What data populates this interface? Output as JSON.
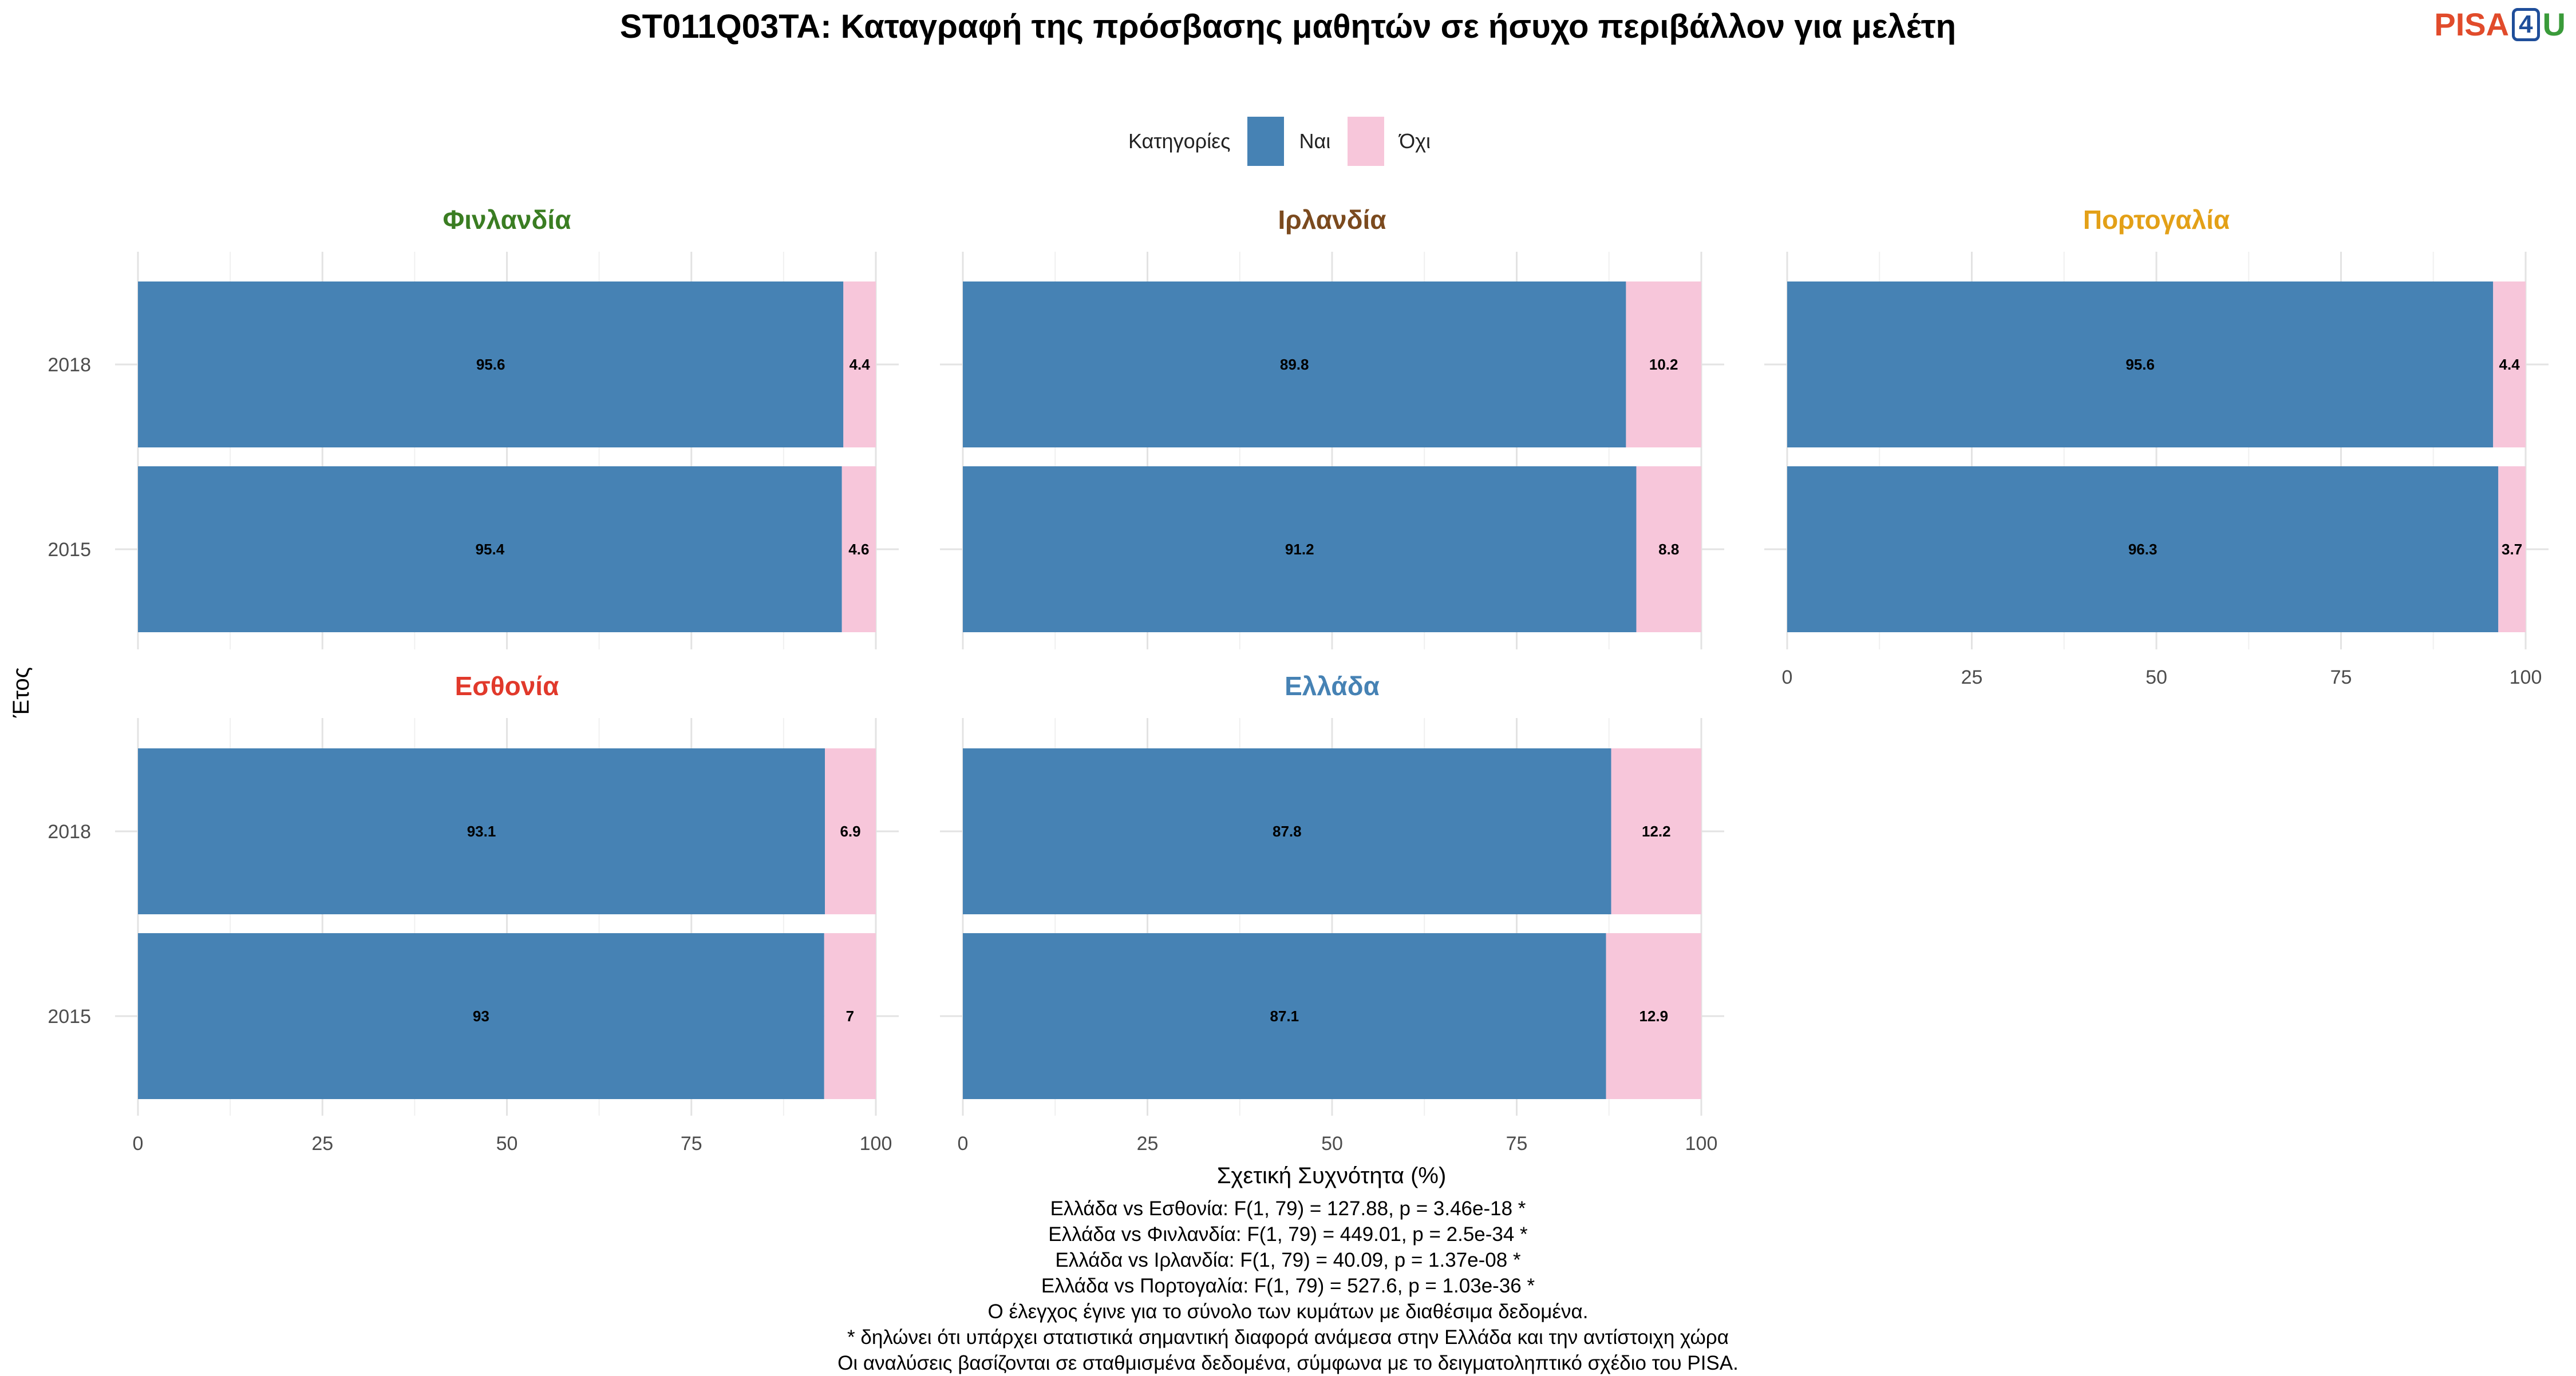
{
  "title": "ST011Q03TA: Καταγραφή της πρόσβασης μαθητών σε ήσυχο περιβάλλον για μελέτη",
  "logo": {
    "part1": "PISA",
    "part2": "4",
    "part3": "U"
  },
  "legend": {
    "title": "Κατηγορίες",
    "items": [
      {
        "label": "Ναι",
        "color": "#4682B4"
      },
      {
        "label": "Όχι",
        "color": "#F7C6DA"
      }
    ]
  },
  "chart_data": {
    "type": "bar",
    "orientation": "horizontal",
    "stacked": true,
    "xlabel": "Σχετική Συχνότητα (%)",
    "ylabel": "Έτος",
    "xlim": [
      0,
      100
    ],
    "xticks": [
      0,
      25,
      50,
      75,
      100
    ],
    "categories": [
      "2018",
      "2015"
    ],
    "panels": [
      {
        "title": "Φινλανδία",
        "title_color": "#3A7D22",
        "series": [
          {
            "name": "Ναι",
            "values": [
              95.6,
              95.4
            ]
          },
          {
            "name": "Όχι",
            "values": [
              4.4,
              4.6
            ]
          }
        ]
      },
      {
        "title": "Ιρλανδία",
        "title_color": "#7B4A1E",
        "series": [
          {
            "name": "Ναι",
            "values": [
              89.8,
              91.2
            ]
          },
          {
            "name": "Όχι",
            "values": [
              10.2,
              8.8
            ]
          }
        ]
      },
      {
        "title": "Πορτογαλία",
        "title_color": "#E3A017",
        "series": [
          {
            "name": "Ναι",
            "values": [
              95.6,
              96.3
            ]
          },
          {
            "name": "Όχι",
            "values": [
              4.4,
              3.7
            ]
          }
        ]
      },
      {
        "title": "Εσθονία",
        "title_color": "#E1392B",
        "series": [
          {
            "name": "Ναι",
            "values": [
              93.1,
              93
            ]
          },
          {
            "name": "Όχι",
            "values": [
              6.9,
              7
            ]
          }
        ]
      },
      {
        "title": "Ελλάδα",
        "title_color": "#4682B4",
        "series": [
          {
            "name": "Ναι",
            "values": [
              87.8,
              87.1
            ]
          },
          {
            "name": "Όχι",
            "values": [
              12.2,
              12.9
            ]
          }
        ]
      }
    ],
    "grid": true,
    "legend_position": "top"
  },
  "footnotes": [
    "Ελλάδα vs Εσθονία: F(1, 79) = 127.88, p = 3.46e-18 *",
    "Ελλάδα vs Φινλανδία: F(1, 79) = 449.01, p = 2.5e-34 *",
    "Ελλάδα vs Ιρλανδία: F(1, 79) = 40.09, p = 1.37e-08 *",
    "Ελλάδα vs Πορτογαλία: F(1, 79) = 527.6, p = 1.03e-36 *",
    "Ο έλεγχος έγινε για το σύνολο των κυμάτων με διαθέσιμα δεδομένα.",
    "* δηλώνει ότι υπάρχει στατιστικά σημαντική διαφορά ανάμεσα στην Ελλάδα και την αντίστοιχη χώρα",
    "Οι αναλύσεις βασίζονται σε σταθμισμένα δεδομένα, σύμφωνα με το δειγματοληπτικό σχέδιο του PISA."
  ]
}
